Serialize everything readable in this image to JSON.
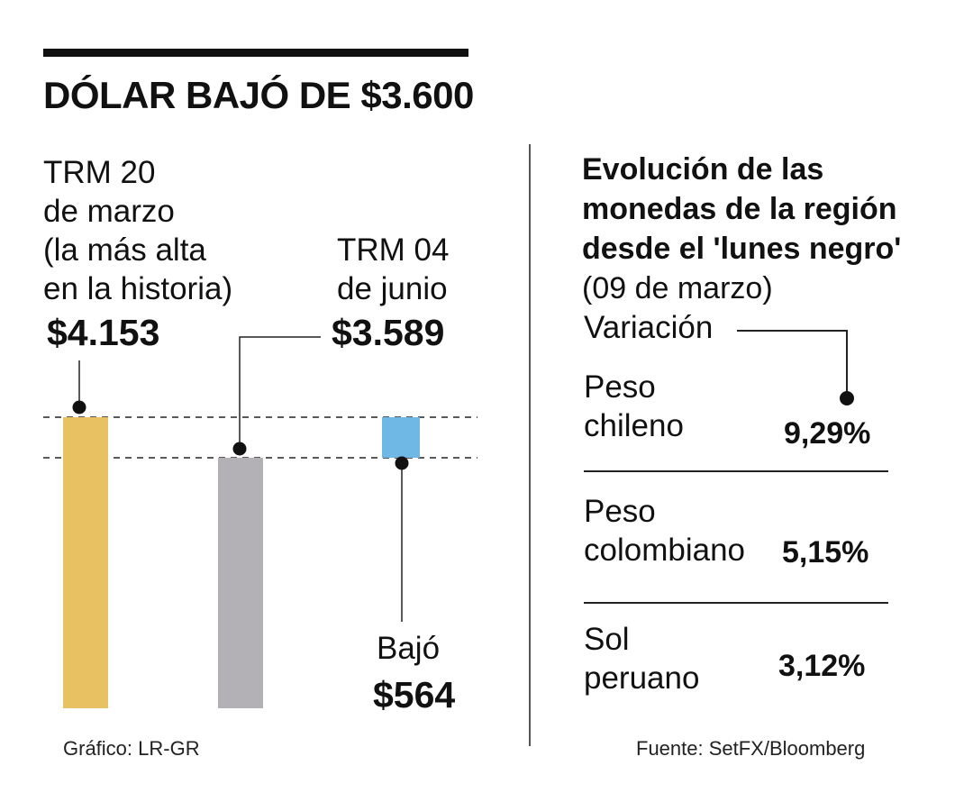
{
  "title": "DÓLAR BAJÓ DE $3.600",
  "chart_data": {
    "type": "bar",
    "categories": [
      "TRM 20 de marzo",
      "TRM 04 de junio",
      "Bajó"
    ],
    "values": [
      4153,
      3589,
      564
    ],
    "labels": {
      "high_line1": "TRM 20",
      "high_line2": "de marzo",
      "high_line3": "(la más alta",
      "high_line4": "en la historia)",
      "high_value": "$4.153",
      "current_line1": "TRM 04",
      "current_line2": "de junio",
      "current_value": "$3.589",
      "drop_label": "Bajó",
      "drop_value": "$564"
    },
    "colors": {
      "high": "#E8C262",
      "current": "#B3B1B5",
      "drop": "#6FB8E6"
    }
  },
  "region": {
    "title_lines": [
      "Evolución de las",
      "monedas de la región",
      "desde el 'lunes negro'",
      "(09 de marzo)"
    ],
    "variation_label": "Variación",
    "currencies": [
      {
        "line1": "Peso",
        "line2": "chileno",
        "value": "9,29%"
      },
      {
        "line1": "Peso",
        "line2": "colombiano",
        "value": "5,15%"
      },
      {
        "line1": "Sol",
        "line2": "peruano",
        "value": "3,12%"
      }
    ]
  },
  "footer": {
    "credit": "Gráfico: LR-GR",
    "source": "Fuente: SetFX/Bloomberg"
  }
}
